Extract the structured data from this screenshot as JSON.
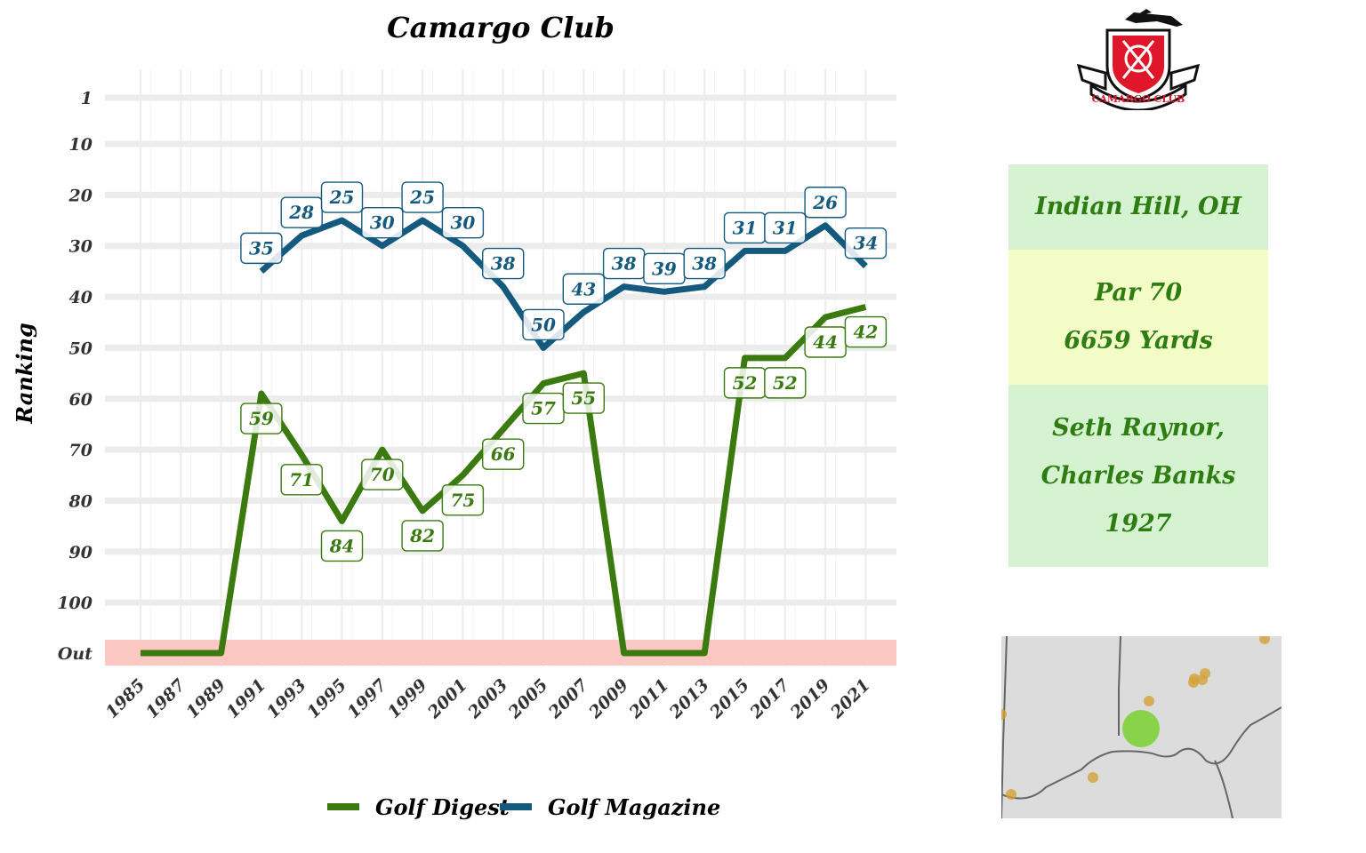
{
  "chart_data": {
    "type": "line",
    "title": "Camargo Club",
    "ylabel": "Ranking",
    "xlabel": "",
    "x_ticks": [
      "1985",
      "1987",
      "1989",
      "1991",
      "1993",
      "1995",
      "1997",
      "1999",
      "2001",
      "2003",
      "2005",
      "2007",
      "2009",
      "2011",
      "2013",
      "2015",
      "2017",
      "2019",
      "2021"
    ],
    "y_ticks": [
      "1",
      "10",
      "20",
      "30",
      "40",
      "50",
      "60",
      "70",
      "80",
      "90",
      "100",
      "Out"
    ],
    "out_value": "Out",
    "series": [
      {
        "name": "Golf Digest",
        "color": "#3a7a0f",
        "x": [
          1985,
          1987,
          1989,
          1991,
          1993,
          1995,
          1997,
          1999,
          2001,
          2003,
          2005,
          2007,
          2009,
          2011,
          2013,
          2015,
          2017,
          2019,
          2021
        ],
        "values": [
          "Out",
          "Out",
          "Out",
          59,
          71,
          84,
          70,
          82,
          75,
          66,
          57,
          55,
          "Out",
          "Out",
          "Out",
          52,
          52,
          44,
          42
        ],
        "labels": [
          null,
          null,
          null,
          "59",
          "71",
          "84",
          "70",
          "82",
          "75",
          "66",
          "57",
          "55",
          null,
          null,
          null,
          "52",
          "52",
          "44",
          "42"
        ]
      },
      {
        "name": "Golf Magazine",
        "color": "#145a7e",
        "x": [
          1991,
          1993,
          1995,
          1997,
          1999,
          2001,
          2003,
          2005,
          2007,
          2009,
          2011,
          2013,
          2015,
          2017,
          2019,
          2021
        ],
        "values": [
          35,
          28,
          25,
          30,
          25,
          30,
          38,
          50,
          43,
          38,
          39,
          38,
          31,
          31,
          26,
          34
        ],
        "labels": [
          "35",
          "28",
          "25",
          "30",
          "25",
          "30",
          "38",
          "50",
          "43",
          "38",
          "39",
          "38",
          "31",
          "31",
          "26",
          "34"
        ]
      }
    ]
  },
  "info": {
    "location": "Indian Hill, OH",
    "par": "Par 70",
    "yards": "6659 Yards",
    "architect_line1": "Seth Raynor,",
    "architect_line2": "Charles Banks",
    "year": "1927"
  },
  "logo": {
    "text": "CAMARGO CLUB",
    "color": "#e0162b"
  },
  "map": {
    "highlight_color": "#7fd13b",
    "dot_color": "#d4a23a"
  }
}
